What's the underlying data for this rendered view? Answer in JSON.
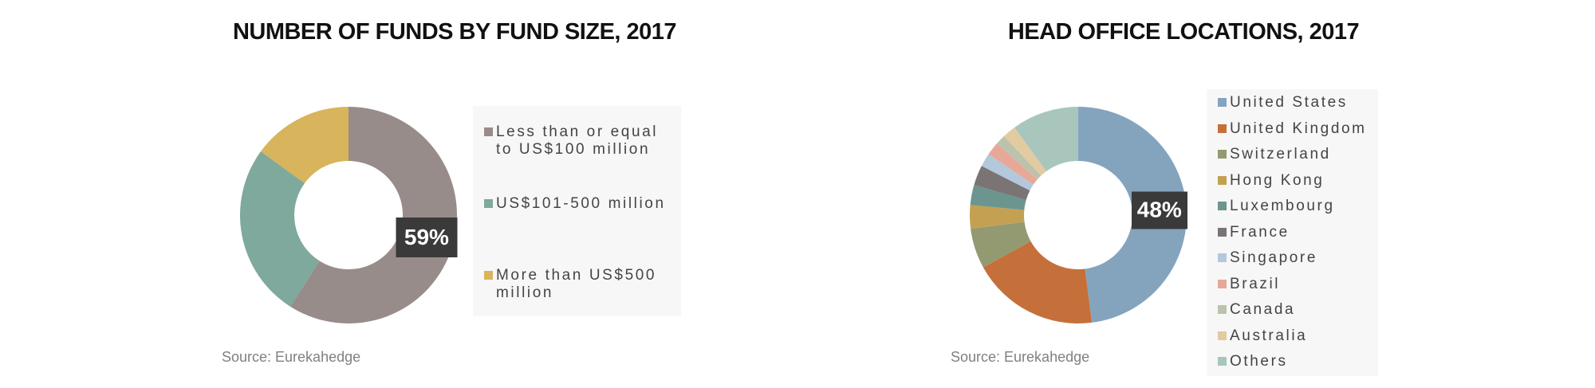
{
  "chart_data": [
    {
      "type": "donut",
      "title": "NUMBER OF FUNDS BY FUND SIZE, 2017",
      "categories": [
        "Less than or equal to US$100 million",
        "US$101-500 million",
        "More than US$500 million"
      ],
      "values": [
        59,
        26,
        15
      ],
      "value_labels": [
        "59%",
        null,
        null
      ],
      "colors": [
        "#988c8b",
        "#7ea99c",
        "#d8b45c"
      ],
      "source": "Source: Eurekahedge"
    },
    {
      "type": "donut",
      "title": "HEAD OFFICE LOCATIONS, 2017",
      "categories": [
        "United States",
        "United Kingdom",
        "Switzerland",
        "Hong Kong",
        "Luxembourg",
        "France",
        "Singapore",
        "Brazil",
        "Canada",
        "Australia",
        "Others"
      ],
      "values": [
        48,
        19,
        6,
        3.5,
        3,
        3,
        2,
        2,
        1.5,
        2,
        10
      ],
      "value_labels": [
        "48%",
        null,
        null,
        null,
        null,
        null,
        null,
        null,
        null,
        null,
        null
      ],
      "colors": [
        "#84a4be",
        "#c5703a",
        "#939a72",
        "#c4a052",
        "#6b958e",
        "#7a7474",
        "#b3c8dc",
        "#e8a898",
        "#bcc3ac",
        "#e2cba0",
        "#a9c6bd"
      ],
      "source": "Source: Eurekahedge"
    }
  ]
}
